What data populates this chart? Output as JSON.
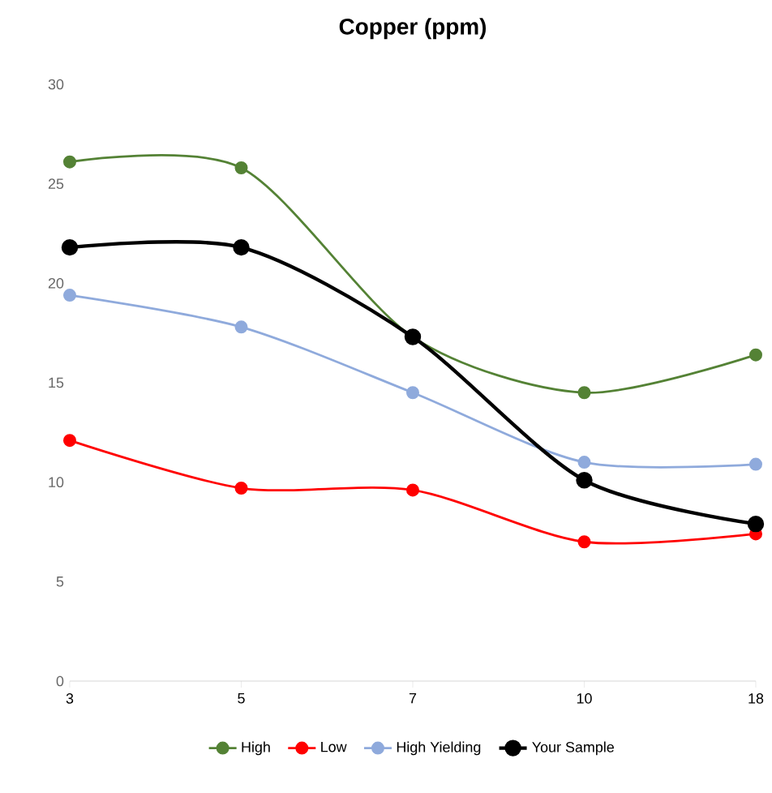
{
  "chart_data": {
    "type": "line",
    "title": "Copper (ppm)",
    "categories": [
      "3",
      "5",
      "7",
      "10",
      "18"
    ],
    "series": [
      {
        "name": "High",
        "color": "#548235",
        "values": [
          26.1,
          25.8,
          17.3,
          14.5,
          16.4
        ]
      },
      {
        "name": "Low",
        "color": "#ff0000",
        "values": [
          12.1,
          9.7,
          9.6,
          7.0,
          7.4
        ]
      },
      {
        "name": "High Yielding",
        "color": "#8faadc",
        "values": [
          19.4,
          17.8,
          14.5,
          11.0,
          10.9
        ]
      },
      {
        "name": "Your Sample",
        "color": "#000000",
        "values": [
          21.8,
          21.8,
          17.3,
          10.1,
          7.9
        ]
      }
    ],
    "ylim": [
      0,
      30
    ],
    "yticks": [
      0,
      5,
      10,
      15,
      20,
      25,
      30
    ],
    "grid": false,
    "legend": "bottom",
    "marker": "circle"
  }
}
